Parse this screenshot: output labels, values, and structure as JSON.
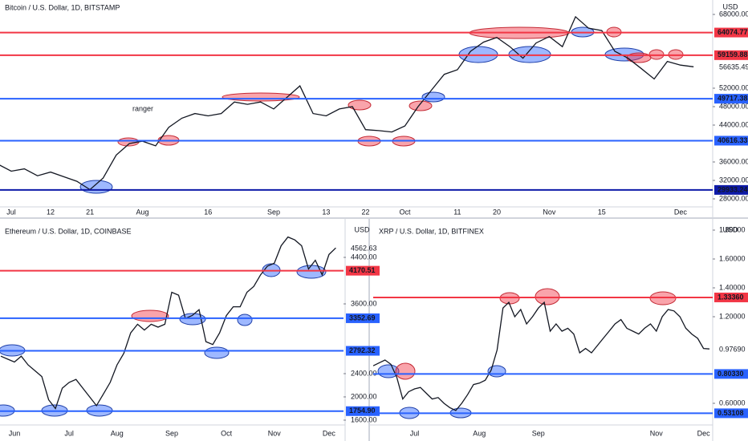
{
  "chart_data": [
    {
      "type": "line",
      "title": "Bitcoin / U.S. Dollar, 1D, BITSTAMP",
      "currency": "USD",
      "annotations": [
        "ranger"
      ],
      "color": "#131722",
      "categories": [
        null,
        null,
        "Jul",
        null,
        null,
        "12",
        null,
        null,
        "21",
        null,
        null,
        null,
        "Aug",
        null,
        null,
        null,
        null,
        "16",
        null,
        null,
        null,
        null,
        "Sep",
        null,
        null,
        null,
        "13",
        null,
        null,
        "22",
        null,
        null,
        "Oct",
        null,
        null,
        null,
        "11",
        null,
        null,
        "20",
        null,
        null,
        null,
        "Nov",
        null,
        null,
        null,
        "15",
        null,
        null,
        null,
        null,
        null,
        "Dec",
        null
      ],
      "values": [
        34500,
        35500,
        34000,
        34500,
        33000,
        33800,
        32800,
        31800,
        30000,
        32500,
        37500,
        40000,
        40500,
        39500,
        43500,
        45500,
        46500,
        46000,
        46500,
        49000,
        48500,
        49000,
        47500,
        50000,
        52500,
        46500,
        46000,
        47500,
        48000,
        43000,
        42800,
        42500,
        43800,
        48000,
        51500,
        55000,
        56000,
        60000,
        62000,
        63000,
        61000,
        58500,
        61800,
        63200,
        61000,
        67500,
        65000,
        64500,
        60000,
        58500,
        56300,
        54000,
        57800,
        57000,
        56635.49
      ],
      "last_price": 56635.49,
      "ylim": [
        26260,
        71130
      ],
      "yticks": [
        {
          "value": 68000,
          "label": "68000.00"
        },
        {
          "value": 52000,
          "label": "52000.00"
        },
        {
          "value": 48000,
          "label": "48000.00"
        },
        {
          "value": 44000,
          "label": "44000.00"
        },
        {
          "value": 36000,
          "label": "36000.00"
        },
        {
          "value": 32000,
          "label": "32000.00"
        },
        {
          "value": 28000,
          "label": "28000.00"
        }
      ],
      "levels": [
        64074.77,
        59159.88,
        49717.38,
        40616.33,
        29933.24
      ],
      "level_colors": [
        "#f23645",
        "#f23645",
        "#2962ff",
        "#2962ff",
        "#0d1aa8"
      ]
    },
    {
      "type": "line",
      "title": "Ethereum / U.S. Dollar, 1D, COINBASE",
      "currency": "USD",
      "color": "#131722",
      "categories": [
        null,
        null,
        "Jun",
        null,
        null,
        null,
        null,
        null,
        null,
        null,
        "Jul",
        null,
        null,
        null,
        null,
        null,
        null,
        "Aug",
        null,
        null,
        null,
        null,
        null,
        null,
        null,
        "Sep",
        null,
        null,
        null,
        null,
        null,
        null,
        null,
        "Oct",
        null,
        null,
        null,
        null,
        null,
        null,
        "Nov",
        null,
        null,
        null,
        null,
        null,
        null,
        null,
        "Dec",
        null
      ],
      "values": [
        2700,
        2650,
        2600,
        2700,
        2550,
        2450,
        2350,
        1950,
        1800,
        2150,
        2250,
        2300,
        2150,
        2000,
        1850,
        2050,
        2250,
        2550,
        2750,
        3100,
        3250,
        3150,
        3250,
        3200,
        3250,
        3800,
        3750,
        3350,
        3400,
        3500,
        2950,
        2900,
        3100,
        3400,
        3550,
        3550,
        3800,
        3900,
        4100,
        4250,
        4300,
        4600,
        4750,
        4700,
        4600,
        4200,
        4350,
        4100,
        4450,
        4562.63
      ],
      "last_price": 4562.63,
      "ylim": [
        1517,
        4993
      ],
      "yticks": [
        {
          "value": 4400,
          "label": "4400.00"
        },
        {
          "value": 3600,
          "label": "3600.00"
        },
        {
          "value": 2400,
          "label": "2400.00"
        },
        {
          "value": 2000,
          "label": "2000.00"
        },
        {
          "value": 1600,
          "label": "1600.00"
        }
      ],
      "levels": [
        4170.51,
        3352.69,
        2792.32,
        1754.9
      ],
      "level_labels": [
        "4170.51",
        "3352.69",
        "2792.32",
        "1754.90"
      ],
      "level_colors": [
        "#f23645",
        "#2962ff",
        "#2962ff",
        "#2962ff"
      ]
    },
    {
      "type": "line",
      "title": "XRP / U.S. Dollar, 1D, BITFINEX",
      "currency": "USD",
      "color": "#131722",
      "categories": [
        null,
        null,
        null,
        null,
        null,
        null,
        null,
        "Jul",
        null,
        null,
        null,
        null,
        null,
        null,
        null,
        null,
        null,
        null,
        "Aug",
        null,
        null,
        null,
        null,
        null,
        null,
        null,
        null,
        null,
        "Sep",
        null,
        null,
        null,
        null,
        null,
        null,
        null,
        null,
        null,
        null,
        null,
        null,
        null,
        null,
        null,
        null,
        null,
        null,
        null,
        "Nov",
        null,
        null,
        null,
        null,
        null,
        null,
        null,
        "Dec",
        null
      ],
      "values": [
        0.86,
        0.88,
        0.9,
        0.87,
        0.78,
        0.63,
        0.68,
        0.7,
        0.71,
        0.67,
        0.63,
        0.64,
        0.6,
        0.57,
        0.55,
        0.6,
        0.66,
        0.73,
        0.74,
        0.76,
        0.83,
        0.97,
        1.26,
        1.3,
        1.2,
        1.25,
        1.15,
        1.2,
        1.26,
        1.3,
        1.1,
        1.15,
        1.1,
        1.12,
        1.08,
        0.95,
        0.98,
        0.95,
        1.0,
        1.05,
        1.1,
        1.15,
        1.18,
        1.12,
        1.1,
        1.08,
        1.12,
        1.15,
        1.1,
        1.2,
        1.25,
        1.24,
        1.2,
        1.12,
        1.08,
        1.05,
        0.98,
        0.9769
      ],
      "last_price": 0.9769,
      "last_price_label": "0.97690",
      "ylim": [
        0.45,
        1.85
      ],
      "yticks": [
        {
          "value": 1.8,
          "label": "1.80000"
        },
        {
          "value": 1.6,
          "label": "1.60000"
        },
        {
          "value": 1.4,
          "label": "1.40000"
        },
        {
          "value": 1.2,
          "label": "1.20000"
        },
        {
          "value": 0.6,
          "label": "0.60000"
        }
      ],
      "levels": [
        1.3336,
        0.8033,
        0.53108
      ],
      "level_labels": [
        "1.33360",
        "0.80330",
        "0.53108"
      ],
      "level_colors": [
        "#f23645",
        "#2962ff",
        "#2962ff"
      ]
    }
  ]
}
